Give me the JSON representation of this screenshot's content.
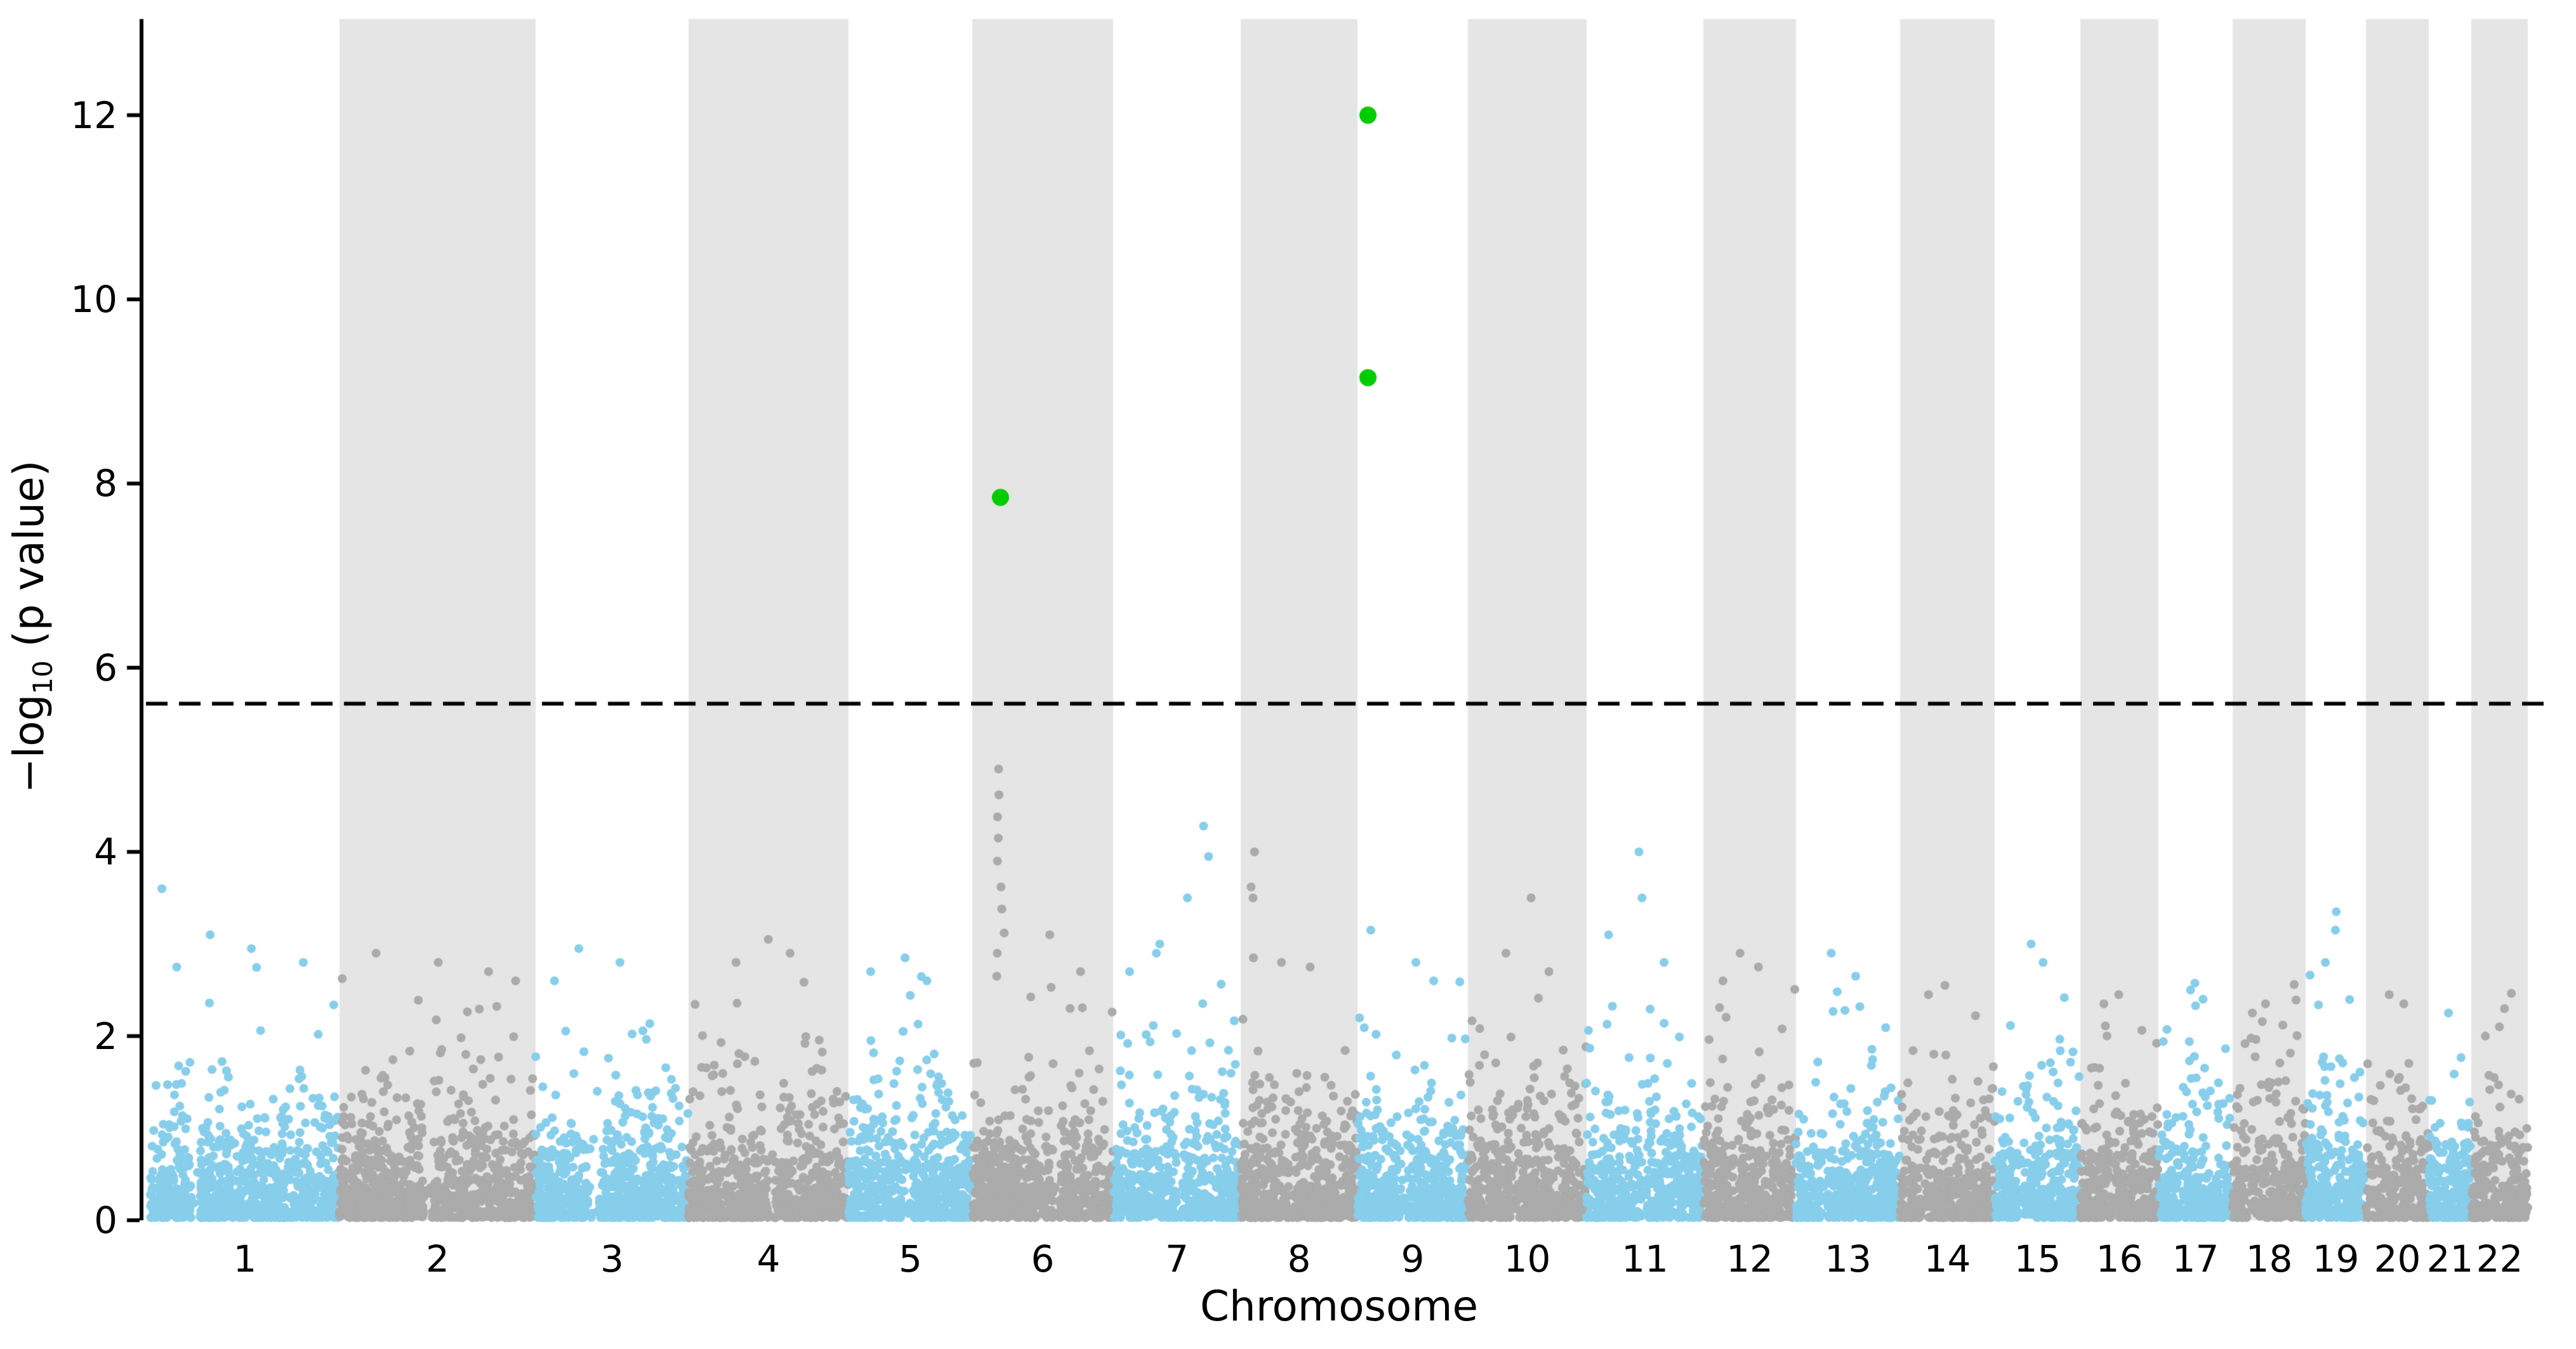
{
  "figure": {
    "xlabel": "Chromosome",
    "ylabel_prefix": "−log",
    "ylabel_sub": "10",
    "ylabel_suffix": " (p value)"
  },
  "chart_data": {
    "type": "scatter",
    "subtype": "manhattan-plot",
    "title": "",
    "xlabel": "Chromosome",
    "ylabel": "-log10 (p value)",
    "ylim": [
      0,
      13.04
    ],
    "yticks": [
      0,
      2,
      4,
      6,
      8,
      10,
      12
    ],
    "xtick_labels": [
      "1",
      "2",
      "3",
      "4",
      "5",
      "6",
      "7",
      "8",
      "9",
      "10",
      "11",
      "12",
      "13",
      "14",
      "15",
      "16",
      "17",
      "18",
      "19",
      "20",
      "21",
      "22"
    ],
    "grid": false,
    "legend": null,
    "threshold_line": {
      "y": 5.61,
      "style": "dashed",
      "color": "#000000"
    },
    "colors": {
      "odd_chromosome_points": "#87ceeb",
      "even_chromosome_points": "#ababab",
      "significant_points": "#00cc00",
      "even_chromosome_band": "#e5e5e5",
      "axis": "#000000",
      "background": "#ffffff"
    },
    "chromosomes": [
      {
        "label": "1",
        "rel_width": 298,
        "band": "white",
        "n_points": 894,
        "gap_rel": 0.24,
        "max_background": 3.6,
        "peaks": [
          [
            3.6,
            0.07
          ],
          [
            3.1,
            0.32
          ],
          [
            2.95,
            0.55
          ],
          [
            2.8,
            0.8
          ],
          [
            2.75,
            0.12
          ]
        ]
      },
      {
        "label": "2",
        "rel_width": 309,
        "band": "gray",
        "n_points": 927,
        "gap_rel": 0.45,
        "max_background": 2.9,
        "peaks": [
          [
            2.9,
            0.2
          ],
          [
            2.8,
            0.5
          ],
          [
            2.7,
            0.75
          ],
          [
            2.6,
            0.9
          ]
        ]
      },
      {
        "label": "3",
        "rel_width": 241,
        "band": "white",
        "n_points": 723,
        "gap_rel": 0.38,
        "max_background": 2.95,
        "peaks": [
          [
            2.95,
            0.3
          ],
          [
            2.8,
            0.55
          ],
          [
            2.6,
            0.1
          ]
        ]
      },
      {
        "label": "4",
        "rel_width": 252,
        "band": "gray",
        "n_points": 756,
        "gap_rel": 0.52,
        "max_background": 3.05,
        "peaks": [
          [
            3.05,
            0.5
          ],
          [
            2.9,
            0.62
          ],
          [
            2.8,
            0.3
          ]
        ]
      },
      {
        "label": "5",
        "rel_width": 195,
        "band": "white",
        "n_points": 585,
        "gap_rel": 0.47,
        "max_background": 2.85,
        "peaks": [
          [
            2.85,
            0.45
          ],
          [
            2.7,
            0.2
          ],
          [
            2.6,
            0.65
          ]
        ]
      },
      {
        "label": "6",
        "rel_width": 222,
        "band": "gray",
        "n_points": 666,
        "gap_rel": 0.6,
        "max_background": 4.9,
        "peaks": [
          [
            4.9,
            0.2
          ],
          [
            4.62,
            0.2
          ],
          [
            4.38,
            0.2
          ],
          [
            4.15,
            0.2
          ],
          [
            3.9,
            0.2
          ],
          [
            3.62,
            0.2
          ],
          [
            3.38,
            0.2
          ],
          [
            3.12,
            0.2
          ],
          [
            2.9,
            0.2
          ],
          [
            2.65,
            0.2
          ],
          [
            3.1,
            0.55
          ],
          [
            2.7,
            0.75
          ]
        ]
      },
      {
        "label": "7",
        "rel_width": 201,
        "band": "white",
        "n_points": 603,
        "gap_rel": 0.52,
        "max_background": 4.28,
        "peaks": [
          [
            4.28,
            0.72
          ],
          [
            3.95,
            0.72
          ],
          [
            3.5,
            0.58
          ],
          [
            3.0,
            0.36
          ],
          [
            2.9,
            0.36
          ],
          [
            2.7,
            0.15
          ]
        ]
      },
      {
        "label": "8",
        "rel_width": 184,
        "band": "gray",
        "n_points": 552,
        "gap_rel": 0.44,
        "max_background": 4.0,
        "peaks": [
          [
            4.0,
            0.1
          ],
          [
            3.62,
            0.1
          ],
          [
            3.5,
            0.1
          ],
          [
            2.85,
            0.1
          ],
          [
            2.8,
            0.32
          ],
          [
            2.75,
            0.6
          ]
        ]
      },
      {
        "label": "9",
        "rel_width": 174,
        "band": "white",
        "n_points": 522,
        "gap_rel": 0.42,
        "max_background": 3.15,
        "peaks": [
          [
            3.15,
            0.095
          ],
          [
            2.8,
            0.5
          ],
          [
            2.6,
            0.7
          ]
        ]
      },
      {
        "label": "10",
        "rel_width": 187,
        "band": "gray",
        "n_points": 561,
        "gap_rel": 0.4,
        "max_background": 3.5,
        "peaks": [
          [
            3.5,
            0.55
          ],
          [
            2.9,
            0.3
          ],
          [
            2.7,
            0.7
          ]
        ]
      },
      {
        "label": "11",
        "rel_width": 184,
        "band": "white",
        "n_points": 552,
        "gap_rel": 0.49,
        "max_background": 4.0,
        "peaks": [
          [
            4.0,
            0.45
          ],
          [
            3.5,
            0.45
          ],
          [
            3.1,
            0.2
          ],
          [
            2.8,
            0.65
          ]
        ]
      },
      {
        "label": "12",
        "rel_width": 146,
        "band": "gray",
        "n_points": 438,
        "gap_rel": 0.35,
        "max_background": 2.9,
        "peaks": [
          [
            2.9,
            0.4
          ],
          [
            2.75,
            0.6
          ],
          [
            2.6,
            0.2
          ]
        ]
      },
      {
        "label": "13",
        "rel_width": 164,
        "band": "white",
        "n_points": 492,
        "gap_rel": 0.28,
        "max_background": 2.9,
        "peaks": [
          [
            2.9,
            0.35
          ],
          [
            2.65,
            0.6
          ]
        ]
      },
      {
        "label": "14",
        "rel_width": 149,
        "band": "gray",
        "n_points": 447,
        "gap_rel": 0.25,
        "max_background": 2.55,
        "peaks": [
          [
            2.55,
            0.5
          ],
          [
            2.45,
            0.3
          ]
        ]
      },
      {
        "label": "15",
        "rel_width": 135,
        "band": "white",
        "n_points": 405,
        "gap_rel": 0.3,
        "max_background": 3.0,
        "peaks": [
          [
            3.0,
            0.4
          ],
          [
            2.8,
            0.6
          ]
        ]
      },
      {
        "label": "16",
        "rel_width": 123,
        "band": "gray",
        "n_points": 369,
        "gap_rel": 0.42,
        "max_background": 2.45,
        "peaks": [
          [
            2.45,
            0.5
          ],
          [
            2.35,
            0.3
          ]
        ]
      },
      {
        "label": "17",
        "rel_width": 117,
        "band": "white",
        "n_points": 351,
        "gap_rel": 0.3,
        "max_background": 2.5,
        "peaks": [
          [
            2.5,
            0.4
          ],
          [
            2.4,
            0.6
          ]
        ]
      },
      {
        "label": "18",
        "rel_width": 115,
        "band": "gray",
        "n_points": 345,
        "gap_rel": 0.22,
        "max_background": 2.35,
        "peaks": [
          [
            2.35,
            0.5
          ],
          [
            2.25,
            0.25
          ]
        ]
      },
      {
        "label": "19",
        "rel_width": 95,
        "band": "white",
        "n_points": 285,
        "gap_rel": 0.45,
        "max_background": 3.35,
        "peaks": [
          [
            3.35,
            0.5
          ],
          [
            3.15,
            0.55
          ],
          [
            2.8,
            0.3
          ]
        ]
      },
      {
        "label": "20",
        "rel_width": 99,
        "band": "gray",
        "n_points": 297,
        "gap_rel": 0.5,
        "max_background": 2.45,
        "peaks": [
          [
            2.45,
            0.4
          ],
          [
            2.35,
            0.6
          ]
        ]
      },
      {
        "label": "21",
        "rel_width": 67,
        "band": "white",
        "n_points": 201,
        "gap_rel": 0.3,
        "max_background": 2.25,
        "peaks": [
          [
            2.25,
            0.5
          ]
        ]
      },
      {
        "label": "22",
        "rel_width": 89,
        "band": "gray",
        "n_points": 267,
        "gap_rel": 0.35,
        "max_background": 2.1,
        "peaks": [
          [
            2.1,
            0.5
          ],
          [
            2.0,
            0.3
          ]
        ]
      }
    ],
    "significant_points": [
      {
        "chromosome": "6",
        "x_rel": 0.2,
        "neg_log10_p": 7.85
      },
      {
        "chromosome": "9",
        "x_rel": 0.095,
        "neg_log10_p": 12.0
      },
      {
        "chromosome": "9",
        "x_rel": 0.095,
        "neg_log10_p": 9.15
      }
    ]
  },
  "render": {
    "seed": 1337,
    "point_radius": 7,
    "significant_point_radius": 13.5,
    "background_exp_mean": 0.42,
    "background_cap": 2.78
  }
}
